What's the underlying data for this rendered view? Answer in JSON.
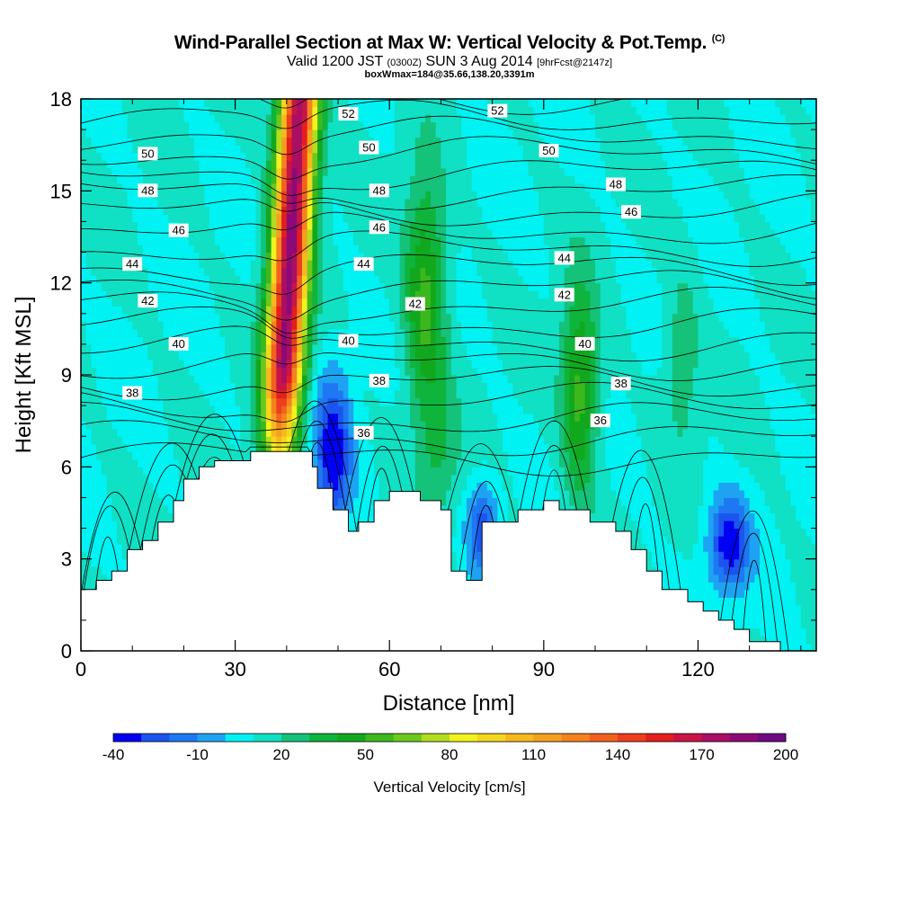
{
  "header": {
    "title": "Wind-Parallel Section at Max W: Vertical Velocity & Pot.Temp.",
    "copyright": "(C)",
    "valid_prefix": "Valid 1200 JST",
    "valid_utc": "(0300Z)",
    "valid_date": "SUN 3 Aug 2014",
    "forecast": "[9hrFcst@2147z]",
    "box_info": "boxWmax=184@35.66,138.20,3391m"
  },
  "colorbar": {
    "label": "Vertical Velocity [cm/s]",
    "levels": [
      -40,
      -30,
      -20,
      -10,
      0,
      10,
      20,
      30,
      40,
      50,
      60,
      70,
      80,
      90,
      100,
      110,
      120,
      130,
      140,
      150,
      160,
      170,
      180,
      190,
      200
    ],
    "colors": [
      "#0000f2",
      "#1b55ee",
      "#1e78f2",
      "#1ea3f2",
      "#00f2f2",
      "#10e0c4",
      "#14c27a",
      "#0eb43c",
      "#12a81e",
      "#3cb81e",
      "#6cc81e",
      "#b4dc1e",
      "#f2f21e",
      "#f5d61e",
      "#f5b91e",
      "#f59f1e",
      "#f5821e",
      "#f2621e",
      "#ec3f1e",
      "#e41e1e",
      "#c81446",
      "#aa0f64",
      "#8c0a78",
      "#6e0a82"
    ],
    "tick_labels": [
      "-40",
      "-10",
      "20",
      "50",
      "80",
      "110",
      "140",
      "170",
      "200"
    ]
  },
  "chart_data": {
    "type": "heatmap",
    "title": "Wind-Parallel Section at Max W: Vertical Velocity & Pot.Temp.",
    "xlabel": "Distance [nm]",
    "ylabel": "Height [Kft MSL]",
    "xlim": [
      0,
      143
    ],
    "ylim": [
      0,
      18
    ],
    "x_ticks": [
      "0",
      "30",
      "60",
      "90",
      "120"
    ],
    "y_ticks": [
      "0",
      "3",
      "6",
      "9",
      "12",
      "15",
      "18"
    ],
    "background_value": 10,
    "terrain": {
      "x": [
        0,
        3,
        3,
        6,
        6,
        9,
        9,
        12,
        12,
        15,
        15,
        18,
        18,
        20,
        20,
        23,
        23,
        26,
        26,
        30,
        30,
        33,
        33,
        45,
        45,
        46,
        46,
        49,
        49,
        52,
        52,
        54,
        54,
        57,
        57,
        60,
        60,
        66,
        66,
        70,
        70,
        72,
        72,
        75,
        75,
        78,
        78,
        80,
        80,
        85,
        85,
        90,
        90,
        93,
        93,
        99,
        99,
        104,
        104,
        107,
        107,
        110,
        110,
        113,
        113,
        118,
        118,
        121,
        121,
        124,
        124,
        127,
        127,
        130,
        130,
        133,
        133,
        136,
        136,
        138,
        138,
        143
      ],
      "y": [
        2.0,
        2.0,
        2.3,
        2.3,
        2.6,
        2.6,
        3.3,
        3.3,
        3.6,
        3.6,
        4.2,
        4.2,
        4.9,
        4.9,
        5.6,
        5.6,
        6.0,
        6.0,
        6.2,
        6.2,
        6.2,
        6.2,
        6.5,
        6.5,
        6.0,
        6.0,
        5.3,
        5.3,
        4.6,
        4.6,
        3.9,
        3.9,
        4.2,
        4.2,
        4.9,
        4.9,
        5.2,
        5.2,
        4.9,
        4.9,
        4.6,
        4.6,
        2.6,
        2.6,
        2.3,
        2.3,
        4.2,
        4.2,
        4.2,
        4.2,
        4.6,
        4.6,
        4.9,
        4.9,
        4.6,
        4.6,
        4.2,
        4.2,
        3.9,
        3.9,
        3.3,
        3.3,
        2.6,
        2.6,
        2.0,
        2.0,
        1.6,
        1.6,
        1.3,
        1.3,
        1.0,
        1.0,
        0.7,
        0.7,
        0.3,
        0.3,
        0.3,
        0.3,
        0.0,
        0.0
      ]
    },
    "w_features": [
      {
        "name": "main-updraft",
        "x0": 36,
        "x1": 44,
        "z0": 7.5,
        "z1": 18,
        "peak": 184,
        "cx": 40,
        "cz": 13.5,
        "rx": 5,
        "rz": 6.5
      },
      {
        "name": "updraft-2",
        "cx": 67,
        "cz": 11.5,
        "rx": 4,
        "rz": 4,
        "peak": 55
      },
      {
        "name": "updraft-3",
        "cx": 97,
        "cz": 8.5,
        "rx": 3.5,
        "rz": 3.5,
        "peak": 55
      },
      {
        "name": "updraft-4",
        "cx": 117,
        "cz": 9.5,
        "rx": 3.5,
        "rz": 3,
        "peak": 28
      },
      {
        "name": "updraft-5",
        "cx": 70,
        "cz": 6.5,
        "rx": 4,
        "rz": 2,
        "peak": 28
      },
      {
        "name": "downdraft-1",
        "cx": 49,
        "cz": 6.5,
        "rx": 3.5,
        "rz": 2.5,
        "peak": -38
      },
      {
        "name": "downdraft-2",
        "cx": 126,
        "cz": 3.5,
        "rx": 4,
        "rz": 1.5,
        "peak": -38
      },
      {
        "name": "downdraft-3",
        "cx": 78,
        "cz": 4,
        "rx": 3,
        "rz": 1.5,
        "peak": -25
      }
    ],
    "isentropes": {
      "levels": [
        36,
        38,
        40,
        42,
        44,
        46,
        48,
        50,
        52
      ],
      "labels": [
        {
          "text": "50",
          "x": 13,
          "y": 16.2
        },
        {
          "text": "48",
          "x": 13,
          "y": 15.0
        },
        {
          "text": "46",
          "x": 19,
          "y": 13.7
        },
        {
          "text": "44",
          "x": 10,
          "y": 12.6
        },
        {
          "text": "42",
          "x": 13,
          "y": 11.4
        },
        {
          "text": "40",
          "x": 19,
          "y": 10.0
        },
        {
          "text": "38",
          "x": 10,
          "y": 8.4
        },
        {
          "text": "52",
          "x": 52,
          "y": 17.5
        },
        {
          "text": "50",
          "x": 56,
          "y": 16.4
        },
        {
          "text": "48",
          "x": 58,
          "y": 15.0
        },
        {
          "text": "46",
          "x": 58,
          "y": 13.8
        },
        {
          "text": "44",
          "x": 55,
          "y": 12.6
        },
        {
          "text": "42",
          "x": 65,
          "y": 11.3
        },
        {
          "text": "40",
          "x": 52,
          "y": 10.1
        },
        {
          "text": "38",
          "x": 58,
          "y": 8.8
        },
        {
          "text": "36",
          "x": 55,
          "y": 7.1
        },
        {
          "text": "52",
          "x": 81,
          "y": 17.6
        },
        {
          "text": "50",
          "x": 91,
          "y": 16.3
        },
        {
          "text": "48",
          "x": 104,
          "y": 15.2
        },
        {
          "text": "46",
          "x": 107,
          "y": 14.3
        },
        {
          "text": "44",
          "x": 94,
          "y": 12.8
        },
        {
          "text": "42",
          "x": 94,
          "y": 11.6
        },
        {
          "text": "40",
          "x": 98,
          "y": 10.0
        },
        {
          "text": "38",
          "x": 105,
          "y": 8.7
        },
        {
          "text": "36",
          "x": 101,
          "y": 7.5
        }
      ]
    }
  }
}
